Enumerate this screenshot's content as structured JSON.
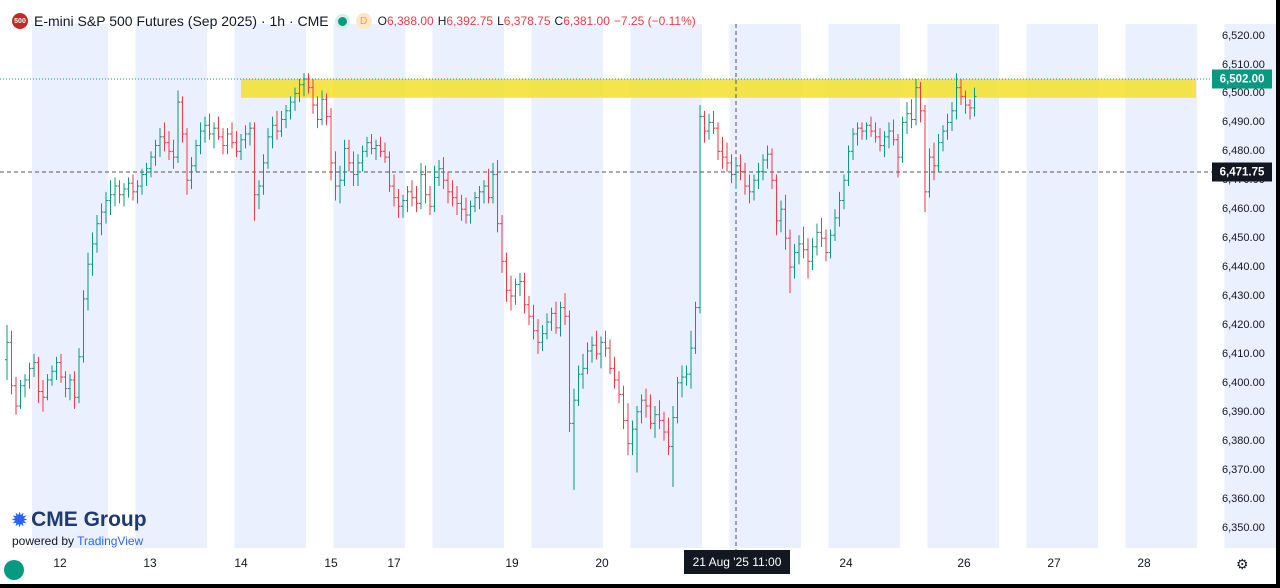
{
  "header": {
    "badge": "500",
    "title": "E-mini S&P 500 Futures (Sep 2025) · 1h · CME",
    "status_letter": "D",
    "ohlc": [
      {
        "k": "O",
        "v": "6,388.00"
      },
      {
        "k": "H",
        "v": "6,392.75"
      },
      {
        "k": "L",
        "v": "6,378.75"
      },
      {
        "k": "C",
        "v": "6,381.00"
      },
      {
        "k": "",
        "v": "−7.25 (−0.11%)"
      }
    ]
  },
  "watermark": {
    "brand": "CME Group",
    "powered": "powered by",
    "tv": "TradingView"
  },
  "crosshair_time": "21 Aug '25   11:00",
  "colors": {
    "up": "#089981",
    "down": "#f23645",
    "band": "#eaf0fd",
    "zone": "#f5e02a",
    "label": "#131722",
    "last_price": "#089981"
  },
  "chart_data": {
    "type": "candlestick",
    "title": "E-mini S&P 500 Futures (Sep 2025) · 1h · CME",
    "xlabel": "",
    "ylabel": "",
    "ylim": [
      6345,
      6524
    ],
    "y_ticks": [
      "6,520.00",
      "6,510.00",
      "6,500.00",
      "6,490.00",
      "6,480.00",
      "6,470.00",
      "6,460.00",
      "6,450.00",
      "6,440.00",
      "6,430.00",
      "6,420.00",
      "6,410.00",
      "6,400.00",
      "6,390.00",
      "6,380.00",
      "6,370.00",
      "6,360.00",
      "6,350.00"
    ],
    "x_ticks": [
      {
        "label": "12",
        "pos": 60
      },
      {
        "label": "13",
        "pos": 150
      },
      {
        "label": "14",
        "pos": 241
      },
      {
        "label": "15",
        "pos": 331
      },
      {
        "label": "17",
        "pos": 394
      },
      {
        "label": "19",
        "pos": 512
      },
      {
        "label": "20",
        "pos": 602
      },
      {
        "label": "24",
        "pos": 846
      },
      {
        "label": "26",
        "pos": 964
      },
      {
        "label": "27",
        "pos": 1054
      },
      {
        "label": "28",
        "pos": 1144
      }
    ],
    "session_bands_bar_index": [
      [
        6,
        22
      ],
      [
        29,
        44
      ],
      [
        51,
        66
      ],
      [
        73,
        88
      ],
      [
        95,
        110
      ],
      [
        117,
        132
      ],
      [
        139,
        154
      ],
      [
        161,
        176
      ],
      [
        183,
        198
      ],
      [
        205,
        220
      ],
      [
        227,
        242
      ],
      [
        249,
        264
      ],
      [
        271,
        283
      ]
    ],
    "resistance_zone": [
      6498.5,
      6505
    ],
    "last_price": "6,502.00",
    "crosshair_price": "6,471.75",
    "candles": [
      [
        6408,
        6420,
        6401,
        6414
      ],
      [
        6414,
        6418,
        6396,
        6399
      ],
      [
        6399,
        6402,
        6389,
        6392
      ],
      [
        6392,
        6401,
        6391,
        6399
      ],
      [
        6399,
        6403,
        6395,
        6401
      ],
      [
        6401,
        6407,
        6398,
        6405
      ],
      [
        6405,
        6410,
        6402,
        6407
      ],
      [
        6407,
        6409,
        6393,
        6397
      ],
      [
        6397,
        6401,
        6390,
        6395
      ],
      [
        6395,
        6403,
        6394,
        6401
      ],
      [
        6401,
        6406,
        6399,
        6404
      ],
      [
        6404,
        6409,
        6401,
        6407
      ],
      [
        6407,
        6410,
        6400,
        6402
      ],
      [
        6402,
        6404,
        6395,
        6398
      ],
      [
        6398,
        6403,
        6394,
        6401
      ],
      [
        6401,
        6404,
        6391,
        6395
      ],
      [
        6395,
        6412,
        6393,
        6409
      ],
      [
        6409,
        6432,
        6407,
        6429
      ],
      [
        6429,
        6445,
        6425,
        6441
      ],
      [
        6441,
        6452,
        6437,
        6448
      ],
      [
        6448,
        6458,
        6445,
        6455
      ],
      [
        6455,
        6462,
        6451,
        6459
      ],
      [
        6459,
        6466,
        6455,
        6463
      ],
      [
        6463,
        6470,
        6458,
        6465
      ],
      [
        6465,
        6471,
        6461,
        6468
      ],
      [
        6468,
        6470,
        6462,
        6465
      ],
      [
        6465,
        6469,
        6461,
        6467
      ],
      [
        6467,
        6471,
        6464,
        6469
      ],
      [
        6469,
        6472,
        6463,
        6466
      ],
      [
        6466,
        6470,
        6462,
        6468
      ],
      [
        6468,
        6474,
        6465,
        6472
      ],
      [
        6472,
        6476,
        6468,
        6474
      ],
      [
        6474,
        6480,
        6471,
        6478
      ],
      [
        6478,
        6484,
        6475,
        6482
      ],
      [
        6482,
        6488,
        6478,
        6485
      ],
      [
        6485,
        6490,
        6480,
        6483
      ],
      [
        6483,
        6487,
        6477,
        6480
      ],
      [
        6480,
        6484,
        6474,
        6478
      ],
      [
        6478,
        6501,
        6476,
        6497
      ],
      [
        6497,
        6499,
        6483,
        6486
      ],
      [
        6486,
        6488,
        6465,
        6470
      ],
      [
        6470,
        6478,
        6467,
        6475
      ],
      [
        6475,
        6484,
        6473,
        6482
      ],
      [
        6482,
        6490,
        6479,
        6487
      ],
      [
        6487,
        6492,
        6483,
        6489
      ],
      [
        6489,
        6493,
        6484,
        6486
      ],
      [
        6486,
        6490,
        6481,
        6488
      ],
      [
        6488,
        6492,
        6484,
        6485
      ],
      [
        6485,
        6488,
        6479,
        6482
      ],
      [
        6482,
        6488,
        6479,
        6486
      ],
      [
        6486,
        6490,
        6481,
        6483
      ],
      [
        6483,
        6487,
        6478,
        6480
      ],
      [
        6480,
        6486,
        6477,
        6484
      ],
      [
        6484,
        6489,
        6481,
        6486
      ],
      [
        6486,
        6490,
        6482,
        6488
      ],
      [
        6488,
        6490,
        6456,
        6465
      ],
      [
        6465,
        6470,
        6460,
        6468
      ],
      [
        6468,
        6479,
        6465,
        6476
      ],
      [
        6476,
        6488,
        6474,
        6485
      ],
      [
        6485,
        6492,
        6481,
        6489
      ],
      [
        6489,
        6494,
        6484,
        6487
      ],
      [
        6487,
        6494,
        6485,
        6491
      ],
      [
        6491,
        6496,
        6488,
        6494
      ],
      [
        6494,
        6499,
        6491,
        6497
      ],
      [
        6497,
        6502,
        6494,
        6500
      ],
      [
        6500,
        6505,
        6497,
        6503
      ],
      [
        6503,
        6507,
        6499,
        6505
      ],
      [
        6505,
        6507,
        6500,
        6502
      ],
      [
        6502,
        6505,
        6493,
        6496
      ],
      [
        6496,
        6499,
        6488,
        6491
      ],
      [
        6491,
        6501,
        6489,
        6498
      ],
      [
        6498,
        6500,
        6489,
        6492
      ],
      [
        6492,
        6495,
        6470,
        6476
      ],
      [
        6476,
        6480,
        6463,
        6468
      ],
      [
        6468,
        6475,
        6462,
        6470
      ],
      [
        6470,
        6484,
        6468,
        6481
      ],
      [
        6481,
        6484,
        6473,
        6476
      ],
      [
        6476,
        6480,
        6468,
        6472
      ],
      [
        6472,
        6479,
        6468,
        6476
      ],
      [
        6476,
        6482,
        6473,
        6480
      ],
      [
        6480,
        6485,
        6478,
        6483
      ],
      [
        6483,
        6486,
        6479,
        6481
      ],
      [
        6481,
        6484,
        6477,
        6482
      ],
      [
        6482,
        6485,
        6478,
        6480
      ],
      [
        6480,
        6483,
        6476,
        6478
      ],
      [
        6478,
        6480,
        6466,
        6468
      ],
      [
        6468,
        6472,
        6461,
        6464
      ],
      [
        6464,
        6467,
        6457,
        6461
      ],
      [
        6461,
        6465,
        6457,
        6463
      ],
      [
        6463,
        6468,
        6459,
        6466
      ],
      [
        6466,
        6470,
        6461,
        6464
      ],
      [
        6464,
        6468,
        6459,
        6462
      ],
      [
        6462,
        6476,
        6460,
        6472
      ],
      [
        6472,
        6475,
        6462,
        6465
      ],
      [
        6465,
        6468,
        6458,
        6461
      ],
      [
        6461,
        6475,
        6459,
        6471
      ],
      [
        6471,
        6477,
        6468,
        6474
      ],
      [
        6474,
        6478,
        6467,
        6470
      ],
      [
        6470,
        6473,
        6462,
        6466
      ],
      [
        6466,
        6470,
        6461,
        6464
      ],
      [
        6464,
        6468,
        6458,
        6462
      ],
      [
        6462,
        6465,
        6456,
        6460
      ],
      [
        6460,
        6464,
        6455,
        6458
      ],
      [
        6458,
        6463,
        6455,
        6461
      ],
      [
        6461,
        6466,
        6459,
        6464
      ],
      [
        6464,
        6468,
        6460,
        6466
      ],
      [
        6466,
        6470,
        6462,
        6468
      ],
      [
        6468,
        6474,
        6462,
        6464
      ],
      [
        6464,
        6476,
        6462,
        6472
      ],
      [
        6472,
        6477,
        6452,
        6455
      ],
      [
        6455,
        6458,
        6438,
        6442
      ],
      [
        6442,
        6445,
        6428,
        6432
      ],
      [
        6432,
        6437,
        6425,
        6430
      ],
      [
        6430,
        6436,
        6427,
        6434
      ],
      [
        6434,
        6438,
        6430,
        6435
      ],
      [
        6435,
        6438,
        6424,
        6427
      ],
      [
        6427,
        6430,
        6420,
        6423
      ],
      [
        6423,
        6427,
        6415,
        6418
      ],
      [
        6418,
        6422,
        6410,
        6414
      ],
      [
        6414,
        6420,
        6411,
        6417
      ],
      [
        6417,
        6424,
        6415,
        6421
      ],
      [
        6421,
        6426,
        6418,
        6424
      ],
      [
        6424,
        6428,
        6417,
        6419
      ],
      [
        6419,
        6428,
        6416,
        6426
      ],
      [
        6426,
        6431,
        6420,
        6423
      ],
      [
        6423,
        6425,
        6383,
        6386
      ],
      [
        6386,
        6398,
        6363,
        6394
      ],
      [
        6394,
        6406,
        6392,
        6403
      ],
      [
        6403,
        6410,
        6398,
        6405
      ],
      [
        6405,
        6414,
        6403,
        6411
      ],
      [
        6411,
        6416,
        6407,
        6413
      ],
      [
        6413,
        6418,
        6408,
        6410
      ],
      [
        6410,
        6416,
        6405,
        6414
      ],
      [
        6414,
        6418,
        6409,
        6412
      ],
      [
        6412,
        6415,
        6403,
        6405
      ],
      [
        6405,
        6409,
        6398,
        6401
      ],
      [
        6401,
        6404,
        6393,
        6396
      ],
      [
        6396,
        6399,
        6384,
        6387
      ],
      [
        6387,
        6393,
        6375,
        6379
      ],
      [
        6379,
        6387,
        6375,
        6384
      ],
      [
        6384,
        6392,
        6369,
        6390
      ],
      [
        6390,
        6396,
        6386,
        6394
      ],
      [
        6394,
        6398,
        6388,
        6392
      ],
      [
        6392,
        6396,
        6384,
        6386
      ],
      [
        6386,
        6392,
        6381,
        6389
      ],
      [
        6389,
        6394,
        6384,
        6387
      ],
      [
        6387,
        6390,
        6380,
        6383
      ],
      [
        6383,
        6388,
        6375,
        6378
      ],
      [
        6378,
        6392,
        6364,
        6388
      ],
      [
        6388,
        6402,
        6386,
        6400
      ],
      [
        6400,
        6406,
        6395,
        6402
      ],
      [
        6402,
        6406,
        6399,
        6403
      ],
      [
        6403,
        6418,
        6398,
        6412
      ],
      [
        6412,
        6428,
        6410,
        6426
      ],
      [
        6426,
        6496,
        6424,
        6492
      ],
      [
        6492,
        6494,
        6483,
        6487
      ],
      [
        6487,
        6493,
        6484,
        6490
      ],
      [
        6490,
        6494,
        6486,
        6488
      ],
      [
        6488,
        6490,
        6477,
        6480
      ],
      [
        6480,
        6485,
        6474,
        6478
      ],
      [
        6478,
        6483,
        6473,
        6476
      ],
      [
        6476,
        6479,
        6469,
        6472
      ],
      [
        6472,
        6477,
        6467,
        6475
      ],
      [
        6475,
        6479,
        6470,
        6473
      ],
      [
        6473,
        6476,
        6465,
        6468
      ],
      [
        6468,
        6472,
        6462,
        6466
      ],
      [
        6466,
        6472,
        6463,
        6470
      ],
      [
        6470,
        6476,
        6467,
        6473
      ],
      [
        6473,
        6479,
        6470,
        6477
      ],
      [
        6477,
        6482,
        6474,
        6479
      ],
      [
        6479,
        6481,
        6467,
        6470
      ],
      [
        6470,
        6472,
        6451,
        6456
      ],
      [
        6456,
        6463,
        6452,
        6460
      ],
      [
        6460,
        6465,
        6446,
        6450
      ],
      [
        6450,
        6453,
        6431,
        6440
      ],
      [
        6440,
        6448,
        6436,
        6445
      ],
      [
        6445,
        6451,
        6441,
        6448
      ],
      [
        6448,
        6454,
        6443,
        6446
      ],
      [
        6446,
        6450,
        6436,
        6442
      ],
      [
        6442,
        6450,
        6439,
        6447
      ],
      [
        6447,
        6455,
        6444,
        6452
      ],
      [
        6452,
        6457,
        6447,
        6450
      ],
      [
        6450,
        6453,
        6442,
        6445
      ],
      [
        6445,
        6453,
        6443,
        6451
      ],
      [
        6451,
        6460,
        6449,
        6457
      ],
      [
        6457,
        6466,
        6454,
        6463
      ],
      [
        6463,
        6472,
        6460,
        6470
      ],
      [
        6470,
        6482,
        6468,
        6480
      ],
      [
        6480,
        6488,
        6477,
        6486
      ],
      [
        6486,
        6490,
        6482,
        6488
      ],
      [
        6488,
        6490,
        6484,
        6487
      ],
      [
        6487,
        6490,
        6484,
        6489
      ],
      [
        6489,
        6492,
        6485,
        6487
      ],
      [
        6487,
        6490,
        6483,
        6485
      ],
      [
        6485,
        6488,
        6480,
        6482
      ],
      [
        6482,
        6487,
        6478,
        6485
      ],
      [
        6485,
        6490,
        6481,
        6487
      ],
      [
        6487,
        6491,
        6482,
        6484
      ],
      [
        6484,
        6486,
        6471,
        6478
      ],
      [
        6478,
        6492,
        6476,
        6490
      ],
      [
        6490,
        6497,
        6486,
        6493
      ],
      [
        6493,
        6498,
        6488,
        6491
      ],
      [
        6491,
        6505,
        6489,
        6502
      ],
      [
        6502,
        6504,
        6490,
        6494
      ],
      [
        6494,
        6496,
        6459,
        6466
      ],
      [
        6466,
        6481,
        6464,
        6478
      ],
      [
        6478,
        6483,
        6470,
        6475
      ],
      [
        6475,
        6486,
        6473,
        6483
      ],
      [
        6483,
        6489,
        6480,
        6487
      ],
      [
        6487,
        6493,
        6484,
        6490
      ],
      [
        6490,
        6497,
        6487,
        6494
      ],
      [
        6494,
        6507,
        6491,
        6502
      ],
      [
        6502,
        6505,
        6496,
        6499
      ],
      [
        6499,
        6501,
        6493,
        6496
      ],
      [
        6496,
        6498,
        6491,
        6495
      ],
      [
        6495,
        6502,
        6492,
        6499
      ]
    ]
  }
}
